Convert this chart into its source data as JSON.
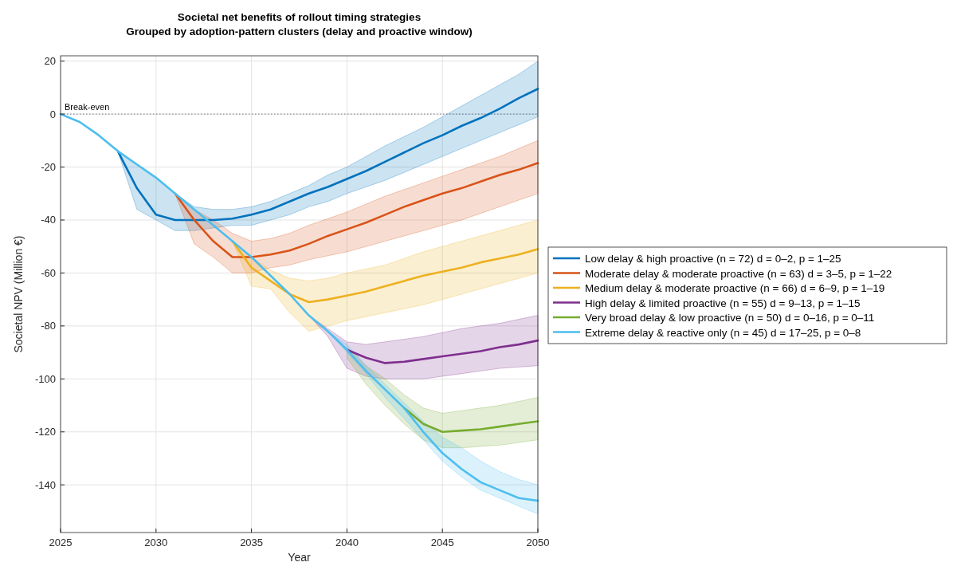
{
  "chart_data": {
    "type": "line",
    "title": "Societal net benefits of rollout timing strategies",
    "subtitle": "Grouped by adoption-pattern clusters (delay and proactive window)",
    "xlabel": "Year",
    "ylabel": "Societal NPV (Million €)",
    "x": [
      2025,
      2026,
      2027,
      2028,
      2029,
      2030,
      2031,
      2032,
      2033,
      2034,
      2035,
      2036,
      2037,
      2038,
      2039,
      2040,
      2041,
      2042,
      2043,
      2044,
      2045,
      2046,
      2047,
      2048,
      2049,
      2050
    ],
    "xlim": [
      2025,
      2050
    ],
    "xticks": [
      2025,
      2030,
      2035,
      2040,
      2045,
      2050
    ],
    "ylim": [
      -158,
      22
    ],
    "yticks": [
      -140,
      -120,
      -100,
      -80,
      -60,
      -40,
      -20,
      0,
      20
    ],
    "grid": true,
    "legend": "right",
    "line_style": "solid",
    "marker": "none",
    "ref_lines": [
      {
        "axis": "y",
        "value": 0,
        "label": "Break-even",
        "color": "#555555",
        "line_style": "dotted"
      }
    ],
    "series": [
      {
        "name": "Low delay & high proactive  (n = 72)   d = 0–2, p = 1–25",
        "color": "#0072bd",
        "values": [
          null,
          null,
          null,
          -14,
          -28,
          -38,
          -40,
          -40,
          -40,
          -39.5,
          -38,
          -36,
          -33,
          -30,
          -27.5,
          -24.5,
          -21.5,
          -18,
          -14.5,
          -11,
          -8,
          -4.5,
          -1.5,
          2,
          6,
          9.5
        ],
        "lower": [
          null,
          null,
          null,
          -14,
          -36,
          -40,
          -44,
          -44,
          -43,
          -42,
          -42,
          -40,
          -38,
          -35,
          -33,
          -30,
          -27.5,
          -25,
          -22,
          -19,
          -16,
          -13,
          -10,
          -7,
          -4,
          -1
        ],
        "upper": [
          null,
          null,
          null,
          -14,
          -19,
          -24,
          -30,
          -35,
          -36,
          -36,
          -35,
          -33,
          -30,
          -27,
          -23,
          -20,
          -16,
          -12,
          -8.5,
          -5,
          -1,
          3,
          7,
          11,
          15,
          20
        ]
      },
      {
        "name": "Moderate delay & moderate proactive  (n = 63)   d = 3–5, p = 1–22",
        "color": "#d95319",
        "values": [
          null,
          null,
          null,
          null,
          null,
          null,
          -30,
          -40,
          -48,
          -54,
          -54,
          -53,
          -51.5,
          -49,
          -46,
          -43.5,
          -41,
          -38,
          -35,
          -32.5,
          -30,
          -28,
          -25.5,
          -23,
          -21,
          -18.5
        ],
        "lower": [
          null,
          null,
          null,
          null,
          null,
          null,
          -30,
          -49,
          -54,
          -60,
          -60,
          -58,
          -57,
          -55,
          -53.5,
          -52,
          -50,
          -48,
          -46,
          -44,
          -42,
          -40,
          -37.5,
          -35,
          -32.5,
          -30
        ],
        "upper": [
          null,
          null,
          null,
          null,
          null,
          null,
          -30,
          -36,
          -40,
          -45,
          -48,
          -47,
          -45,
          -42,
          -39.5,
          -37,
          -34,
          -31,
          -28.5,
          -26,
          -23.5,
          -21,
          -18.5,
          -16,
          -13,
          -10
        ]
      },
      {
        "name": "Medium delay & moderate proactive  (n = 66)   d = 6–9, p = 1–19",
        "color": "#edb120",
        "values": [
          null,
          null,
          null,
          null,
          null,
          null,
          null,
          null,
          null,
          -48,
          -58,
          -63,
          -68,
          -71,
          -70,
          -68.5,
          -67,
          -65,
          -63,
          -61,
          -59.5,
          -58,
          -56,
          -54.5,
          -53,
          -51
        ],
        "lower": [
          null,
          null,
          null,
          null,
          null,
          null,
          null,
          null,
          null,
          -48,
          -65,
          -66,
          -75,
          -82,
          -80,
          -78,
          -76.5,
          -75,
          -73.5,
          -72,
          -70,
          -68,
          -66,
          -64,
          -62,
          -60
        ],
        "upper": [
          null,
          null,
          null,
          null,
          null,
          null,
          null,
          null,
          null,
          -48,
          -54,
          -59,
          -62,
          -63,
          -62,
          -60,
          -58.5,
          -57,
          -54.5,
          -52,
          -50,
          -48,
          -46,
          -44,
          -42,
          -40
        ]
      },
      {
        "name": "High delay & limited proactive  (n = 55)   d = 9–13, p = 1–15",
        "color": "#7e2f8e",
        "values": [
          null,
          null,
          null,
          null,
          null,
          null,
          null,
          null,
          null,
          null,
          null,
          null,
          null,
          null,
          null,
          -89,
          -92,
          -94,
          -93.5,
          -92.5,
          -91.5,
          -90.5,
          -89.5,
          -88,
          -87,
          -85.5
        ],
        "lower": [
          null,
          null,
          null,
          null,
          null,
          null,
          null,
          null,
          null,
          null,
          null,
          null,
          null,
          -76,
          -84,
          -96,
          -99,
          -100,
          -100,
          -100,
          -99,
          -98,
          -97,
          -96,
          -95.5,
          -95
        ],
        "upper": [
          null,
          null,
          null,
          null,
          null,
          null,
          null,
          null,
          null,
          null,
          null,
          null,
          null,
          -76,
          -81,
          -86,
          -87,
          -86,
          -85,
          -84,
          -82.5,
          -81,
          -80,
          -79,
          -77.5,
          -76
        ]
      },
      {
        "name": "Very broad delay & low proactive  (n = 50)   d = 0–16, p = 0–11",
        "color": "#77ac30",
        "values": [
          null,
          null,
          null,
          null,
          null,
          null,
          null,
          null,
          null,
          null,
          null,
          null,
          null,
          null,
          null,
          null,
          null,
          null,
          -111,
          -117,
          -120,
          -119.5,
          -119,
          -118,
          -117,
          -116
        ],
        "lower": [
          null,
          null,
          null,
          null,
          null,
          null,
          null,
          null,
          null,
          null,
          null,
          null,
          null,
          null,
          null,
          -92,
          -102,
          -110,
          -117,
          -123,
          -126,
          -126,
          -125.5,
          -125,
          -124,
          -123
        ],
        "upper": [
          null,
          null,
          null,
          null,
          null,
          null,
          null,
          null,
          null,
          null,
          null,
          null,
          null,
          null,
          null,
          -88,
          -95,
          -100,
          -106,
          -111,
          -113,
          -112,
          -111,
          -110,
          -108.5,
          -107
        ]
      },
      {
        "name": "Extreme delay & reactive only  (n = 45)   d = 17–25, p = 0–8",
        "color": "#4dbeee",
        "values": [
          0,
          -3,
          -8,
          -14,
          -19,
          -24,
          -30,
          -36,
          -42,
          -48,
          -54,
          -61,
          -68,
          -76,
          -82,
          -89,
          -97,
          -104,
          -111,
          -120,
          -128,
          -134,
          -139,
          -142,
          -145,
          -146
        ],
        "lower": [
          null,
          null,
          null,
          null,
          null,
          null,
          null,
          null,
          null,
          null,
          null,
          null,
          null,
          null,
          -82,
          -90,
          -98,
          -107,
          -115,
          -123,
          -131,
          -137,
          -142,
          -145,
          -148,
          -151
        ],
        "upper": [
          null,
          null,
          null,
          null,
          null,
          null,
          null,
          null,
          null,
          null,
          null,
          null,
          null,
          null,
          -82,
          -87,
          -95,
          -102,
          -109,
          -116,
          -122,
          -126,
          -131,
          -135,
          -138,
          -140
        ]
      }
    ]
  }
}
